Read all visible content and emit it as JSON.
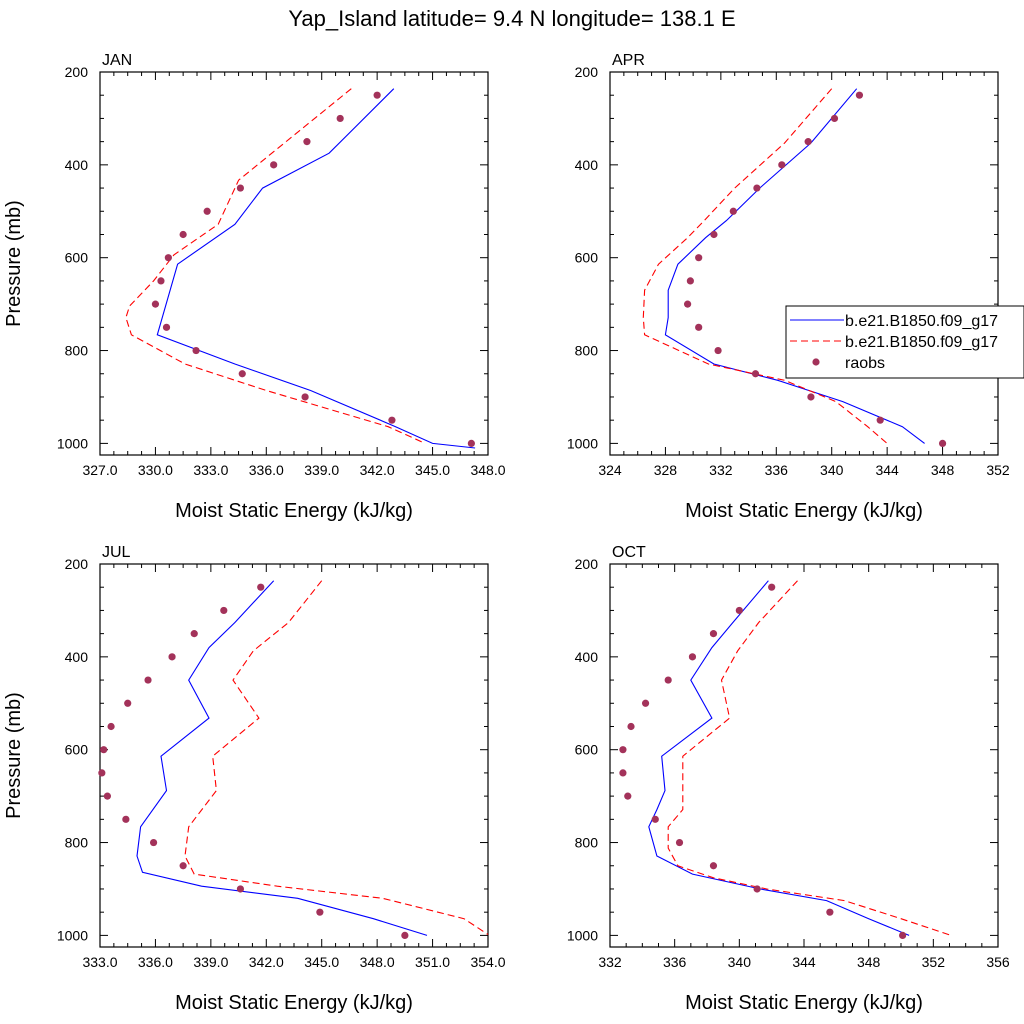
{
  "title": "Yap_Island  latitude= 9.4 N longitude= 138.1 E",
  "legend": {
    "placement": "right of APR panel",
    "entries": [
      {
        "label": "b.e21.B1850.f09_g17",
        "style": "solid",
        "color": "#0000ff"
      },
      {
        "label": "b.e21.B1850.f09_g17",
        "style": "dashed",
        "color": "#ff0000"
      },
      {
        "label": "raobs",
        "style": "marker",
        "color": "#a3325a"
      }
    ]
  },
  "chart_data": [
    {
      "type": "line",
      "panel": "JAN",
      "xlabel": "Moist Static Energy (kJ/kg)",
      "ylabel": "Pressure (mb)",
      "xlim": [
        327,
        348
      ],
      "xticks": [
        327,
        330,
        333,
        336,
        339,
        342,
        345,
        348
      ],
      "xtick_labels": [
        "327.0",
        "330.0",
        "333.0",
        "336.0",
        "339.0",
        "342.0",
        "345.0",
        "348.0"
      ],
      "ylim": [
        200,
        1025
      ],
      "yticks": [
        200,
        400,
        600,
        800,
        1000
      ],
      "series": [
        {
          "style": "solid",
          "color": "#0000ff",
          "points": [
            [
              342.9,
              236
            ],
            [
              339.4,
              375
            ],
            [
              335.8,
              450
            ],
            [
              334.3,
              528
            ],
            [
              331.2,
              614
            ],
            [
              330.1,
              766
            ],
            [
              334.3,
              829
            ],
            [
              338.4,
              886
            ],
            [
              343.0,
              964
            ],
            [
              345.0,
              1000
            ],
            [
              347.3,
              1010
            ]
          ]
        },
        {
          "style": "dashed",
          "color": "#ff0000",
          "points": [
            [
              340.6,
              236
            ],
            [
              336.3,
              375
            ],
            [
              334.5,
              433
            ],
            [
              333.4,
              528
            ],
            [
              331.0,
              594
            ],
            [
              329.9,
              650
            ],
            [
              328.6,
              704
            ],
            [
              328.4,
              729
            ],
            [
              328.7,
              766
            ],
            [
              331.6,
              829
            ],
            [
              336.0,
              886
            ],
            [
              342.6,
              964
            ],
            [
              344.6,
              1000
            ]
          ]
        },
        {
          "style": "marker",
          "color": "#a3325a",
          "points": [
            [
              342.0,
              250
            ],
            [
              340.0,
              300
            ],
            [
              338.2,
              350
            ],
            [
              336.4,
              400
            ],
            [
              334.6,
              450
            ],
            [
              332.8,
              500
            ],
            [
              331.5,
              550
            ],
            [
              330.7,
              600
            ],
            [
              330.3,
              650
            ],
            [
              330.0,
              700
            ],
            [
              330.6,
              750
            ],
            [
              332.2,
              800
            ],
            [
              334.7,
              850
            ],
            [
              338.1,
              900
            ],
            [
              342.8,
              950
            ],
            [
              347.1,
              1000
            ]
          ]
        }
      ]
    },
    {
      "type": "line",
      "panel": "APR",
      "xlabel": "Moist Static Energy (kJ/kg)",
      "ylabel": "",
      "xlim": [
        324,
        352
      ],
      "xticks": [
        324,
        328,
        332,
        336,
        340,
        344,
        348,
        352
      ],
      "xtick_labels": [
        "324",
        "328",
        "332",
        "336",
        "340",
        "344",
        "348",
        "352"
      ],
      "ylim": [
        200,
        1025
      ],
      "yticks": [
        200,
        400,
        600,
        800,
        1000
      ],
      "series": [
        {
          "style": "solid",
          "color": "#0000ff",
          "points": [
            [
              341.8,
              236
            ],
            [
              338.5,
              353
            ],
            [
              334.8,
              450
            ],
            [
              332.4,
              520
            ],
            [
              330.9,
              557
            ],
            [
              328.9,
              614
            ],
            [
              328.2,
              670
            ],
            [
              328.2,
              729
            ],
            [
              328.0,
              766
            ],
            [
              331.5,
              829
            ],
            [
              336.1,
              864
            ],
            [
              340.8,
              910
            ],
            [
              345.1,
              964
            ],
            [
              346.7,
              1000
            ]
          ]
        },
        {
          "style": "dashed",
          "color": "#ff0000",
          "points": [
            [
              340.0,
              236
            ],
            [
              336.6,
              353
            ],
            [
              333.0,
              450
            ],
            [
              330.8,
              520
            ],
            [
              329.6,
              557
            ],
            [
              327.5,
              614
            ],
            [
              326.5,
              670
            ],
            [
              326.4,
              729
            ],
            [
              326.5,
              766
            ],
            [
              331.1,
              829
            ],
            [
              336.6,
              864
            ],
            [
              340.3,
              910
            ],
            [
              342.6,
              964
            ],
            [
              344.0,
              1000
            ]
          ]
        },
        {
          "style": "marker",
          "color": "#a3325a",
          "points": [
            [
              342.0,
              250
            ],
            [
              340.2,
              300
            ],
            [
              338.3,
              350
            ],
            [
              336.4,
              400
            ],
            [
              334.6,
              450
            ],
            [
              332.9,
              500
            ],
            [
              331.5,
              550
            ],
            [
              330.4,
              600
            ],
            [
              329.8,
              650
            ],
            [
              329.6,
              700
            ],
            [
              330.4,
              750
            ],
            [
              331.8,
              800
            ],
            [
              334.5,
              850
            ],
            [
              338.5,
              900
            ],
            [
              343.5,
              950
            ],
            [
              348.0,
              1000
            ]
          ]
        }
      ]
    },
    {
      "type": "line",
      "panel": "JUL",
      "xlabel": "Moist Static Energy (kJ/kg)",
      "ylabel": "Pressure (mb)",
      "xlim": [
        333,
        354
      ],
      "xticks": [
        333,
        336,
        339,
        342,
        345,
        348,
        351,
        354
      ],
      "xtick_labels": [
        "333.0",
        "336.0",
        "339.0",
        "342.0",
        "345.0",
        "348.0",
        "351.0",
        "354.0"
      ],
      "ylim": [
        200,
        1025
      ],
      "yticks": [
        200,
        400,
        600,
        800,
        1000
      ],
      "series": [
        {
          "style": "solid",
          "color": "#0000ff",
          "points": [
            [
              342.4,
              236
            ],
            [
              340.3,
              326
            ],
            [
              338.9,
              380
            ],
            [
              337.8,
              450
            ],
            [
              338.9,
              532
            ],
            [
              336.3,
              614
            ],
            [
              336.6,
              688
            ],
            [
              335.2,
              766
            ],
            [
              335.0,
              829
            ],
            [
              335.3,
              864
            ],
            [
              338.5,
              894
            ],
            [
              343.7,
              920
            ],
            [
              347.8,
              964
            ],
            [
              350.7,
              1000
            ]
          ]
        },
        {
          "style": "dashed",
          "color": "#ff0000",
          "points": [
            [
              345.0,
              236
            ],
            [
              343.2,
              326
            ],
            [
              341.3,
              387
            ],
            [
              340.2,
              450
            ],
            [
              341.6,
              532
            ],
            [
              339.1,
              614
            ],
            [
              339.3,
              688
            ],
            [
              337.8,
              766
            ],
            [
              337.6,
              829
            ],
            [
              338.1,
              868
            ],
            [
              342.6,
              894
            ],
            [
              348.3,
              920
            ],
            [
              352.7,
              964
            ],
            [
              354.0,
              998
            ]
          ]
        },
        {
          "style": "marker",
          "color": "#a3325a",
          "points": [
            [
              341.7,
              250
            ],
            [
              339.7,
              300
            ],
            [
              338.1,
              350
            ],
            [
              336.9,
              400
            ],
            [
              335.6,
              450
            ],
            [
              334.5,
              500
            ],
            [
              333.6,
              550
            ],
            [
              333.2,
              600
            ],
            [
              333.1,
              650
            ],
            [
              333.4,
              700
            ],
            [
              334.4,
              750
            ],
            [
              335.9,
              800
            ],
            [
              337.5,
              850
            ],
            [
              340.6,
              900
            ],
            [
              344.9,
              950
            ],
            [
              349.5,
              1000
            ]
          ]
        }
      ]
    },
    {
      "type": "line",
      "panel": "OCT",
      "xlabel": "Moist Static Energy (kJ/kg)",
      "ylabel": "",
      "xlim": [
        332,
        356
      ],
      "xticks": [
        332,
        336,
        340,
        344,
        348,
        352,
        356
      ],
      "xtick_labels": [
        "332",
        "336",
        "340",
        "344",
        "348",
        "352",
        "356"
      ],
      "ylim": [
        200,
        1025
      ],
      "yticks": [
        200,
        400,
        600,
        800,
        1000
      ],
      "series": [
        {
          "style": "solid",
          "color": "#0000ff",
          "points": [
            [
              341.8,
              236
            ],
            [
              339.6,
              326
            ],
            [
              338.3,
              380
            ],
            [
              337.0,
              450
            ],
            [
              338.3,
              532
            ],
            [
              335.2,
              614
            ],
            [
              335.4,
              688
            ],
            [
              334.9,
              729
            ],
            [
              334.4,
              766
            ],
            [
              334.9,
              829
            ],
            [
              337.1,
              868
            ],
            [
              341.3,
              900
            ],
            [
              345.4,
              925
            ],
            [
              348.0,
              964
            ],
            [
              350.5,
              1000
            ]
          ]
        },
        {
          "style": "dashed",
          "color": "#ff0000",
          "points": [
            [
              343.6,
              236
            ],
            [
              341.2,
              326
            ],
            [
              339.9,
              387
            ],
            [
              338.9,
              450
            ],
            [
              339.4,
              532
            ],
            [
              336.5,
              614
            ],
            [
              336.5,
              729
            ],
            [
              335.6,
              766
            ],
            [
              335.6,
              812
            ],
            [
              336.2,
              850
            ],
            [
              338.4,
              876
            ],
            [
              341.7,
              900
            ],
            [
              346.5,
              925
            ],
            [
              350.0,
              964
            ],
            [
              353.1,
              1000
            ]
          ]
        },
        {
          "style": "marker",
          "color": "#a3325a",
          "points": [
            [
              342.0,
              250
            ],
            [
              340.0,
              300
            ],
            [
              338.4,
              350
            ],
            [
              337.1,
              400
            ],
            [
              335.6,
              450
            ],
            [
              334.2,
              500
            ],
            [
              333.3,
              550
            ],
            [
              332.8,
              600
            ],
            [
              332.8,
              650
            ],
            [
              333.1,
              700
            ],
            [
              334.8,
              750
            ],
            [
              336.3,
              800
            ],
            [
              338.4,
              850
            ],
            [
              341.1,
              900
            ],
            [
              345.6,
              950
            ],
            [
              350.1,
              1000
            ]
          ]
        }
      ]
    }
  ]
}
